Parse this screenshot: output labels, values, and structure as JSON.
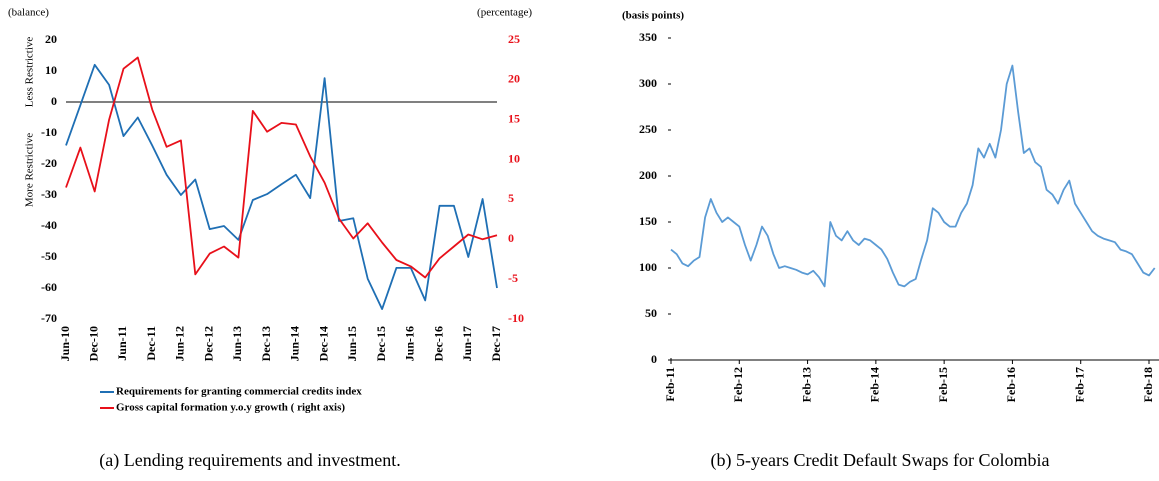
{
  "chart_data": [
    {
      "type": "line",
      "y_label": "(balance)",
      "y2_label": "(percentage)",
      "annotations": [
        "Less Restrictive",
        "More Restrictive"
      ],
      "caption": "(a) Lending requirements and investment.",
      "categories": [
        "Jun-10",
        null,
        "Dec-10",
        null,
        "Jun-11",
        null,
        "Dec-11",
        null,
        "Jun-12",
        null,
        "Dec-12",
        null,
        "Jun-13",
        null,
        "Dec-13",
        null,
        "Jun-14",
        null,
        "Dec-14",
        null,
        "Jun-15",
        null,
        "Dec-15",
        null,
        "Jun-16",
        null,
        "Dec-16",
        null,
        "Jun-17",
        null,
        "Dec-17"
      ],
      "series": [
        {
          "name": "Requirements for granting commercial credits index",
          "color": "#1f6fb4",
          "values": [
            -14,
            -1,
            12,
            5.5,
            -11,
            -5,
            -14,
            -23.5,
            -30,
            -25,
            -41,
            -40,
            -44.5,
            -31.6,
            -29.7,
            -26.5,
            -23.5,
            -31,
            7.7,
            -38.4,
            -37.5,
            -57,
            -66.8,
            -53.5,
            -53.5,
            -64,
            -33.5,
            -33.5,
            -50,
            -31.3,
            -60
          ]
        },
        {
          "name": "Gross capital formation y.o.y growth ( right axis)",
          "color": "#e8101a",
          "axis": "y2",
          "values": [
            6.5,
            11.5,
            6,
            15,
            21.4,
            22.8,
            16.3,
            11.6,
            12.4,
            -4.4,
            -1.8,
            -0.9,
            -2.3,
            16.1,
            13.5,
            14.6,
            14.4,
            10.4,
            7.1,
            2.6,
            0.1,
            2,
            -0.4,
            -2.6,
            -3.4,
            -4.8,
            -2.4,
            -0.9,
            0.6,
            0,
            0.5
          ]
        }
      ],
      "ylim": [
        -70,
        20
      ],
      "yticks": [
        -70,
        -60,
        -50,
        -40,
        -30,
        -20,
        -10,
        0,
        10,
        20
      ],
      "y2lim": [
        -10,
        25
      ],
      "y2ticks": [
        -10,
        -5,
        0,
        5,
        10,
        15,
        20,
        25
      ],
      "y2_color": "#e8101a",
      "zero_line": true,
      "legend": "bottom"
    },
    {
      "type": "line",
      "y_label": "(basis points)",
      "caption": "(b) 5-years Credit Default Swaps for Colombia",
      "categories": [
        "Feb-11",
        null,
        null,
        null,
        null,
        null,
        null,
        null,
        null,
        null,
        null,
        null,
        "Feb-12",
        null,
        null,
        null,
        null,
        null,
        null,
        null,
        null,
        null,
        null,
        null,
        "Feb-13",
        null,
        null,
        null,
        null,
        null,
        null,
        null,
        null,
        null,
        null,
        null,
        "Feb-14",
        null,
        null,
        null,
        null,
        null,
        null,
        null,
        null,
        null,
        null,
        null,
        "Feb-15",
        null,
        null,
        null,
        null,
        null,
        null,
        null,
        null,
        null,
        null,
        null,
        "Feb-16",
        null,
        null,
        null,
        null,
        null,
        null,
        null,
        null,
        null,
        null,
        null,
        "Feb-17",
        null,
        null,
        null,
        null,
        null,
        null,
        null,
        null,
        null,
        null,
        null,
        "Feb-18",
        null
      ],
      "series": [
        {
          "color": "#5b9bd5",
          "values": [
            120,
            115,
            105,
            102,
            108,
            112,
            155,
            175,
            160,
            150,
            155,
            150,
            145,
            125,
            108,
            125,
            145,
            135,
            115,
            100,
            102,
            100,
            98,
            95,
            93,
            97,
            90,
            80,
            150,
            135,
            130,
            140,
            130,
            125,
            132,
            130,
            125,
            120,
            110,
            95,
            82,
            80,
            85,
            88,
            110,
            130,
            165,
            160,
            150,
            145,
            145,
            160,
            170,
            190,
            230,
            220,
            235,
            220,
            250,
            300,
            320,
            270,
            225,
            230,
            215,
            210,
            185,
            180,
            170,
            185,
            195,
            170,
            160,
            150,
            140,
            135,
            132,
            130,
            128,
            120,
            118,
            115,
            105,
            95,
            92,
            100
          ]
        }
      ],
      "ylim": [
        0,
        350
      ],
      "yticks": [
        0,
        50,
        100,
        150,
        200,
        250,
        300,
        350
      ]
    }
  ]
}
